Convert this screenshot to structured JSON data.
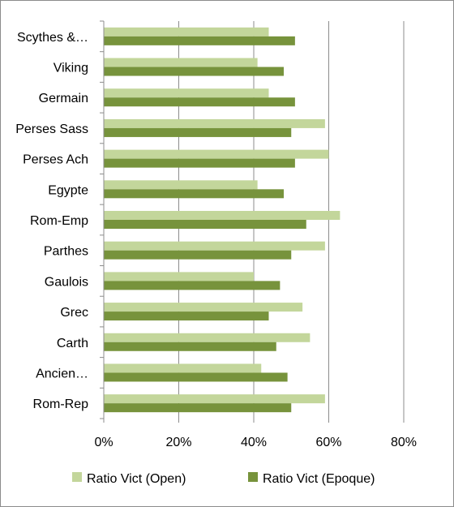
{
  "chart_data": {
    "type": "bar",
    "orientation": "horizontal",
    "categories": [
      "Scythes &…",
      "Viking",
      "Germain",
      "Perses Sass",
      "Perses Ach",
      "Egypte",
      "Rom-Emp",
      "Parthes",
      "Gaulois",
      "Grec",
      "Carth",
      "Ancien…",
      "Rom-Rep"
    ],
    "series": [
      {
        "name": "Ratio Vict (Open)",
        "color": "#c3d69b",
        "values": [
          0.44,
          0.41,
          0.44,
          0.59,
          0.6,
          0.41,
          0.63,
          0.59,
          0.4,
          0.53,
          0.55,
          0.42,
          0.59
        ]
      },
      {
        "name": "Ratio Vict (Epoque)",
        "color": "#77933c",
        "values": [
          0.51,
          0.48,
          0.51,
          0.5,
          0.51,
          0.48,
          0.54,
          0.5,
          0.47,
          0.44,
          0.46,
          0.49,
          0.5
        ]
      }
    ],
    "xlim": [
      0,
      0.8
    ],
    "xticks": [
      0,
      0.2,
      0.4,
      0.6,
      0.8
    ],
    "xtick_labels": [
      "0%",
      "20%",
      "40%",
      "60%",
      "80%"
    ],
    "grid": true,
    "legend": "bottom",
    "title": "",
    "xlabel": "",
    "ylabel": ""
  }
}
